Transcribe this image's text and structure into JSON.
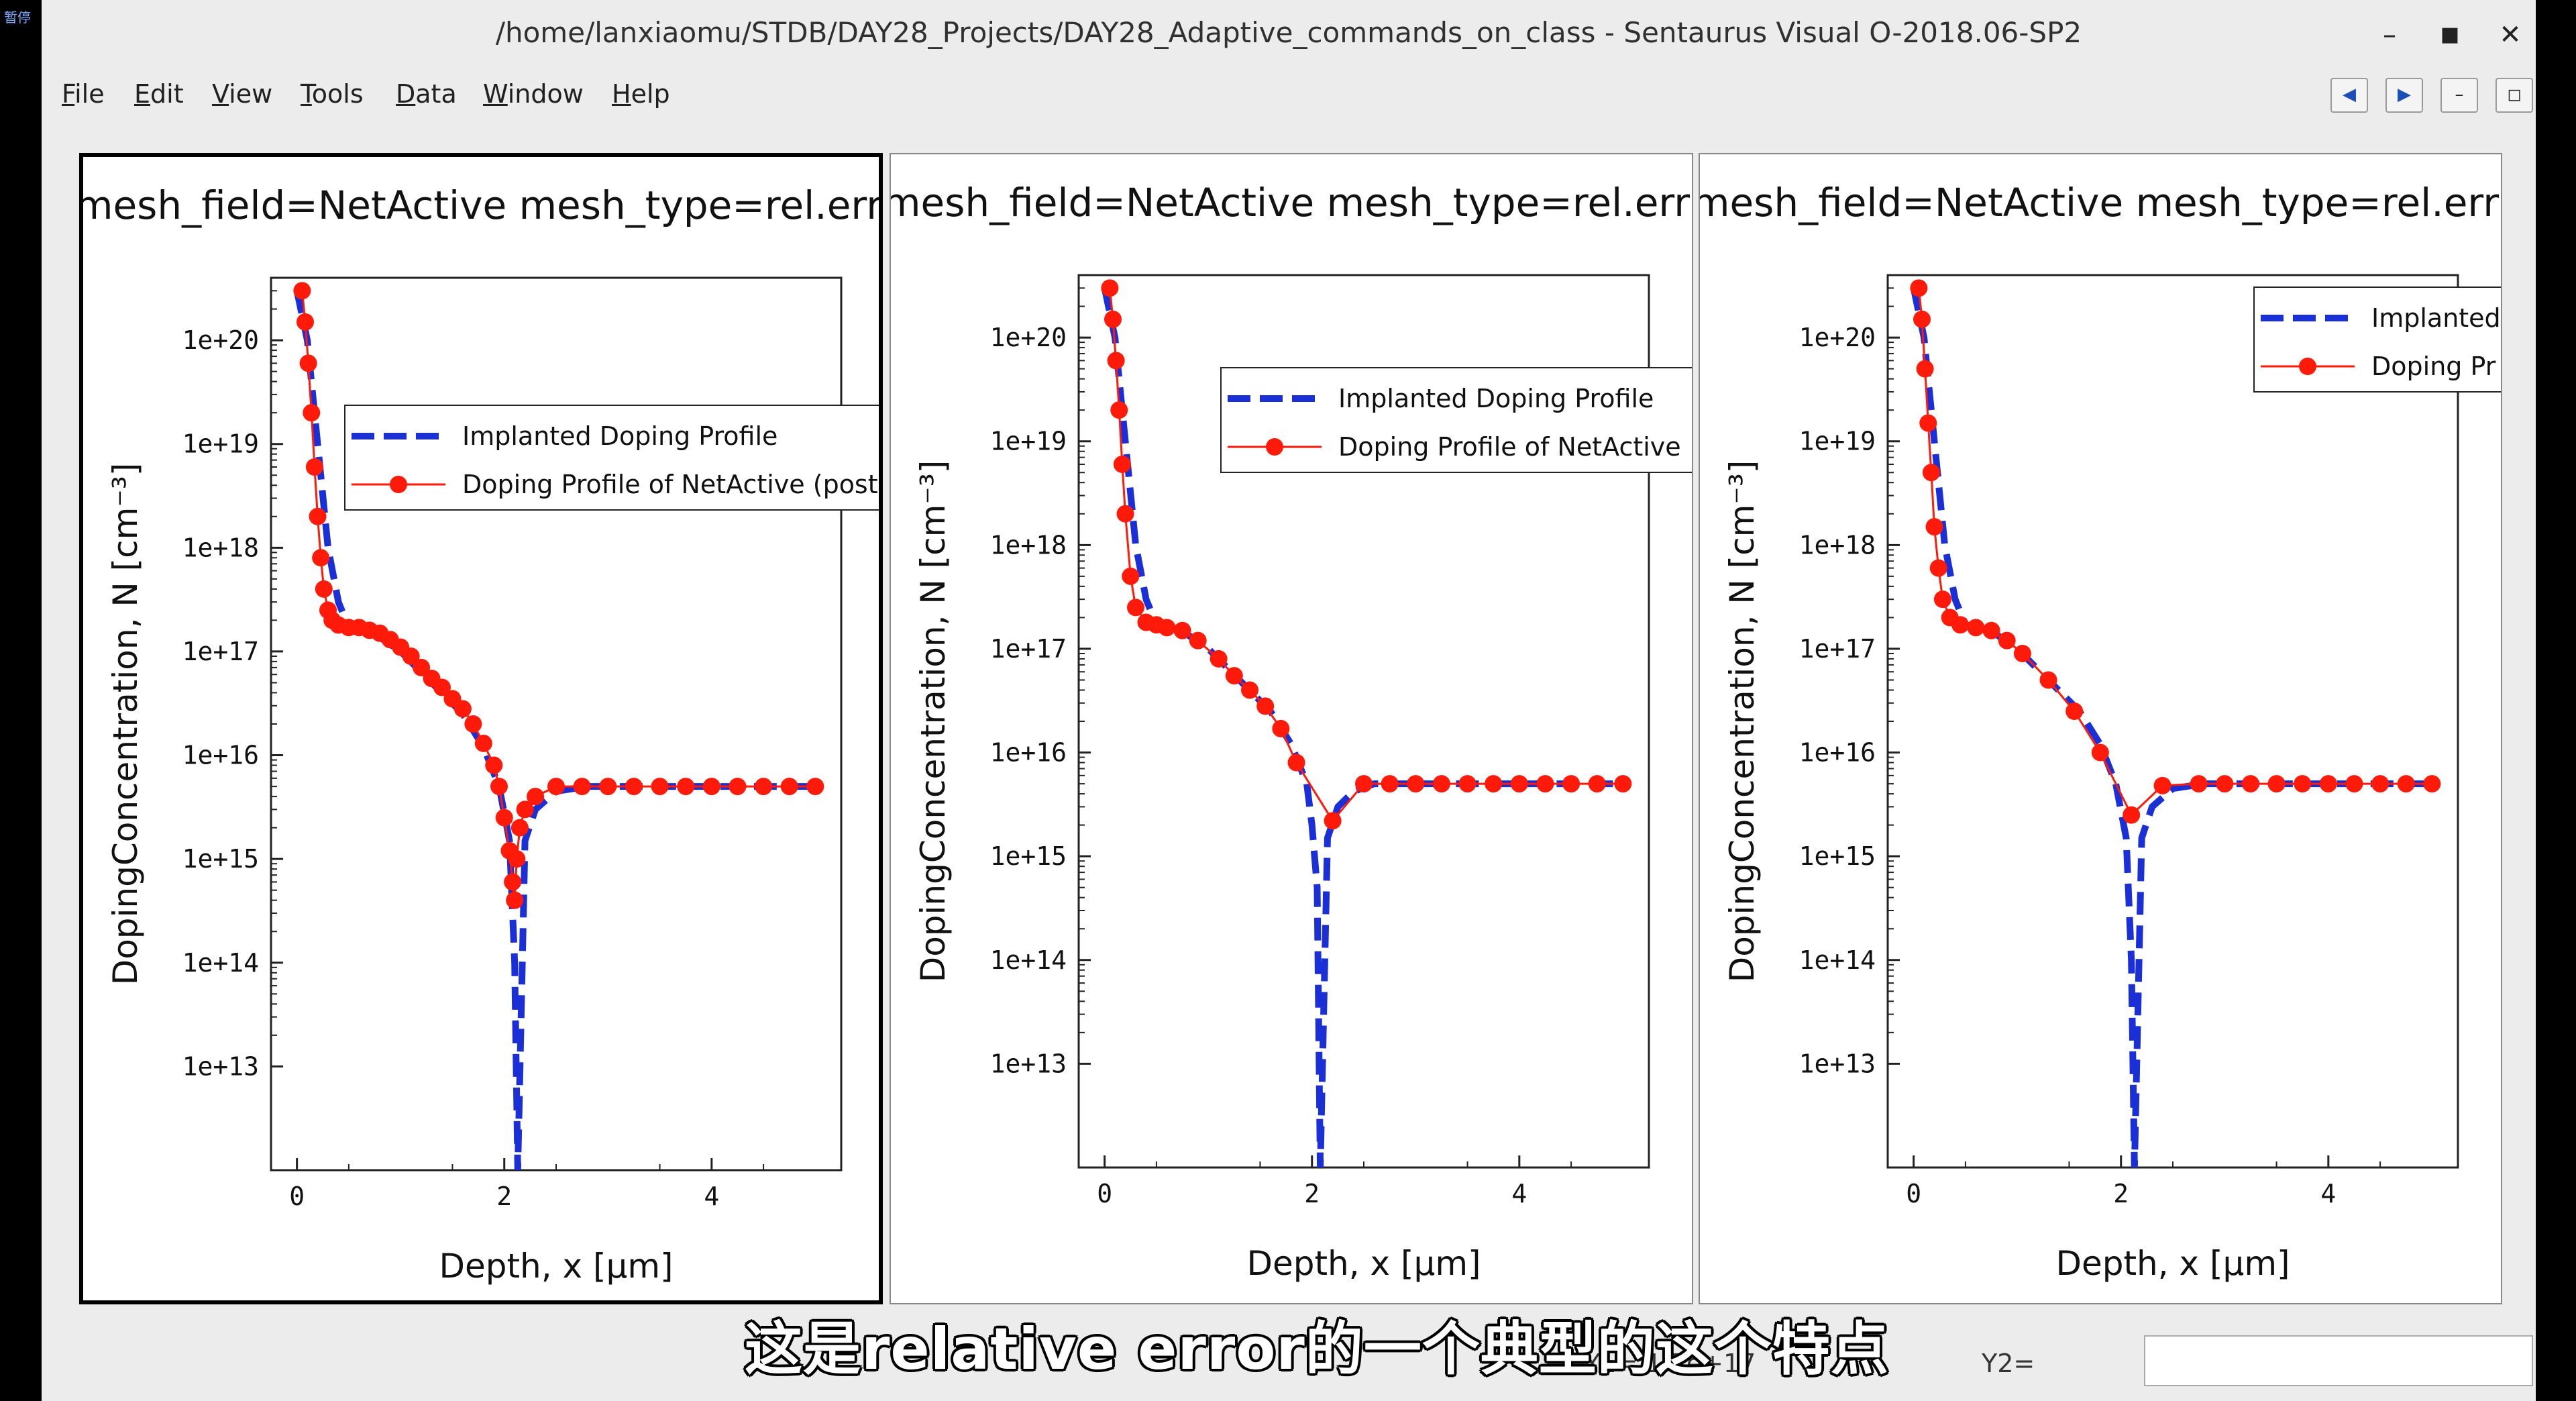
{
  "window": {
    "title": "/home/lanxiaomu/STDB/DAY28_Projects/DAY28_Adaptive_commands_on_class - Sentaurus Visual O-2018.06-SP2",
    "controls": [
      "–",
      "■",
      "✕"
    ],
    "corner_badge": "暂停"
  },
  "menubar": {
    "items": [
      {
        "key": "F",
        "rest": "ile"
      },
      {
        "key": "E",
        "rest": "dit"
      },
      {
        "key": "V",
        "rest": "iew"
      },
      {
        "key": "T",
        "rest": "ools"
      },
      {
        "key": "D",
        "rest": "ata"
      },
      {
        "key": "W",
        "rest": "indow"
      },
      {
        "key": "H",
        "rest": "elp"
      }
    ],
    "right_buttons": [
      "◀",
      "▶",
      "–",
      "◻"
    ]
  },
  "panels": [
    {
      "title": "mesh_field=NetActive mesh_type=rel.err",
      "legend": [
        "Implanted Doping Profile",
        "Doping Profile of NetActive (post"
      ],
      "active": true
    },
    {
      "title": "mesh_field=NetActive mesh_type=rel.err",
      "legend": [
        "Implanted Doping Profile",
        "Doping Profile of NetActive"
      ],
      "active": false
    },
    {
      "title": "mesh_field=NetActive mesh_type=rel.err",
      "legend": [
        "Implanted",
        "Doping Pr"
      ],
      "active": false
    }
  ],
  "chart_data": [
    {
      "type": "line",
      "xlabel": "Depth, x [µm]",
      "ylabel": "DopingConcentration, N [cm⁻³]",
      "xlim": [
        -0.25,
        5.25
      ],
      "ylim": [
        1000000000000.0,
        4e+20
      ],
      "yscale": "log",
      "xticks": [
        0,
        2,
        4
      ],
      "yticks": [
        "1e+13",
        "1e+14",
        "1e+15",
        "1e+16",
        "1e+17",
        "1e+18",
        "1e+19",
        "1e+20"
      ],
      "series": [
        {
          "name": "Implanted Doping Profile",
          "color": "#1a2fd6",
          "style": "dashed",
          "x": [
            0,
            0.1,
            0.2,
            0.3,
            0.4,
            0.5,
            0.7,
            1.0,
            1.3,
            1.6,
            1.8,
            1.95,
            2.05,
            2.1,
            2.13,
            2.2,
            2.3,
            2.5,
            2.8,
            3.5,
            5.0
          ],
          "y": [
            3e+20,
            1e+20,
            1e+19,
            1e+18,
            3e+17,
            1.7e+17,
            1.6e+17,
            1e+17,
            5e+16,
            2.5e+16,
            1.2e+16,
            5000000000000000.0,
            1500000000000000.0,
            100000000000000.0,
            1000000000000.0,
            1500000000000000.0,
            3000000000000000.0,
            4500000000000000.0,
            5000000000000000.0,
            5000000000000000.0,
            5000000000000000.0
          ]
        },
        {
          "name": "Doping Profile of NetActive (post",
          "color": "#ff1a0a",
          "style": "line+marker",
          "x": [
            0.05,
            0.08,
            0.11,
            0.14,
            0.17,
            0.2,
            0.23,
            0.26,
            0.3,
            0.34,
            0.4,
            0.5,
            0.6,
            0.7,
            0.8,
            0.9,
            1.0,
            1.1,
            1.2,
            1.3,
            1.4,
            1.5,
            1.6,
            1.7,
            1.8,
            1.9,
            1.95,
            2.0,
            2.05,
            2.08,
            2.1,
            2.12,
            2.15,
            2.2,
            2.3,
            2.5,
            2.75,
            3.0,
            3.25,
            3.5,
            3.75,
            4.0,
            4.25,
            4.5,
            4.75,
            5.0
          ],
          "y": [
            3e+20,
            1.5e+20,
            6e+19,
            2e+19,
            6e+18,
            2e+18,
            8e+17,
            4e+17,
            2.5e+17,
            2e+17,
            1.8e+17,
            1.7e+17,
            1.7e+17,
            1.6e+17,
            1.5e+17,
            1.3e+17,
            1.1e+17,
            9e+16,
            7e+16,
            5.5e+16,
            4.5e+16,
            3.5e+16,
            2.8e+16,
            2e+16,
            1.3e+16,
            8000000000000000.0,
            5000000000000000.0,
            2500000000000000.0,
            1200000000000000.0,
            600000000000000.0,
            400000000000000.0,
            1000000000000000.0,
            2000000000000000.0,
            3000000000000000.0,
            4000000000000000.0,
            5000000000000000.0,
            5000000000000000.0,
            5000000000000000.0,
            5000000000000000.0,
            5000000000000000.0,
            5000000000000000.0,
            5000000000000000.0,
            5000000000000000.0,
            5000000000000000.0,
            5000000000000000.0,
            5000000000000000.0
          ]
        }
      ]
    },
    {
      "type": "line",
      "xlabel": "Depth, x [µm]",
      "ylabel": "DopingConcentration, N [cm⁻³]",
      "xlim": [
        -0.25,
        5.25
      ],
      "ylim": [
        1000000000000.0,
        4e+20
      ],
      "yscale": "log",
      "xticks": [
        0,
        2,
        4
      ],
      "yticks": [
        "1e+13",
        "1e+14",
        "1e+15",
        "1e+16",
        "1e+17",
        "1e+18",
        "1e+19",
        "1e+20"
      ],
      "series": [
        {
          "name": "Implanted Doping Profile",
          "color": "#1a2fd6",
          "style": "dashed",
          "x": [
            0,
            0.1,
            0.2,
            0.3,
            0.4,
            0.5,
            0.7,
            1.0,
            1.3,
            1.6,
            1.8,
            1.95,
            2.0,
            2.05,
            2.08,
            2.15,
            2.25,
            2.4,
            2.6,
            3.0,
            5.0
          ],
          "y": [
            3e+20,
            1e+20,
            1e+19,
            1e+18,
            3e+17,
            1.7e+17,
            1.6e+17,
            1e+17,
            5e+16,
            2.5e+16,
            1.2e+16,
            5000000000000000.0,
            2000000000000000.0,
            500000000000000.0,
            1000000000000.0,
            1500000000000000.0,
            3000000000000000.0,
            4200000000000000.0,
            5000000000000000.0,
            5000000000000000.0,
            5000000000000000.0
          ]
        },
        {
          "name": "Doping Profile of NetActive",
          "color": "#ff1a0a",
          "style": "line+marker",
          "x": [
            0.05,
            0.08,
            0.11,
            0.14,
            0.17,
            0.2,
            0.25,
            0.3,
            0.4,
            0.5,
            0.6,
            0.75,
            0.9,
            1.1,
            1.25,
            1.4,
            1.55,
            1.7,
            1.85,
            2.2,
            2.5,
            2.75,
            3.0,
            3.25,
            3.5,
            3.75,
            4.0,
            4.25,
            4.5,
            4.75,
            5.0
          ],
          "y": [
            3e+20,
            1.5e+20,
            6e+19,
            2e+19,
            6e+18,
            2e+18,
            5e+17,
            2.5e+17,
            1.8e+17,
            1.7e+17,
            1.6e+17,
            1.5e+17,
            1.2e+17,
            8e+16,
            5.5e+16,
            4e+16,
            2.8e+16,
            1.7e+16,
            8000000000000000.0,
            2200000000000000.0,
            5000000000000000.0,
            5000000000000000.0,
            5000000000000000.0,
            5000000000000000.0,
            5000000000000000.0,
            5000000000000000.0,
            5000000000000000.0,
            5000000000000000.0,
            5000000000000000.0,
            5000000000000000.0,
            5000000000000000.0
          ]
        }
      ]
    },
    {
      "type": "line",
      "xlabel": "Depth, x [µm]",
      "ylabel": "DopingConcentration, N [cm⁻³]",
      "xlim": [
        -0.25,
        5.25
      ],
      "ylim": [
        1000000000000.0,
        4e+20
      ],
      "yscale": "log",
      "xticks": [
        0,
        2,
        4
      ],
      "yticks": [
        "1e+13",
        "1e+14",
        "1e+15",
        "1e+16",
        "1e+17",
        "1e+18",
        "1e+19",
        "1e+20"
      ],
      "series": [
        {
          "name": "Implanted Doping Profile",
          "color": "#1a2fd6",
          "style": "dashed",
          "x": [
            0,
            0.1,
            0.2,
            0.3,
            0.4,
            0.5,
            0.7,
            1.0,
            1.3,
            1.6,
            1.8,
            1.95,
            2.05,
            2.1,
            2.13,
            2.2,
            2.3,
            2.5,
            2.8,
            3.5,
            5.0
          ],
          "y": [
            3e+20,
            1e+20,
            1e+19,
            1e+18,
            3e+17,
            1.7e+17,
            1.6e+17,
            1e+17,
            5e+16,
            2.5e+16,
            1.2e+16,
            5000000000000000.0,
            1500000000000000.0,
            100000000000000.0,
            1000000000000.0,
            1500000000000000.0,
            3000000000000000.0,
            4500000000000000.0,
            5000000000000000.0,
            5000000000000000.0,
            5000000000000000.0
          ]
        },
        {
          "name": "Doping Profile of NetActive",
          "color": "#ff1a0a",
          "style": "line+marker",
          "x": [
            0.05,
            0.08,
            0.11,
            0.14,
            0.17,
            0.2,
            0.24,
            0.28,
            0.35,
            0.45,
            0.6,
            0.75,
            0.9,
            1.05,
            1.3,
            1.55,
            1.8,
            2.1,
            2.4,
            2.75,
            3.0,
            3.25,
            3.5,
            3.75,
            4.0,
            4.25,
            4.5,
            4.75,
            5.0
          ],
          "y": [
            3e+20,
            1.5e+20,
            5e+19,
            1.5e+19,
            5e+18,
            1.5e+18,
            6e+17,
            3e+17,
            2e+17,
            1.7e+17,
            1.6e+17,
            1.5e+17,
            1.2e+17,
            9e+16,
            5e+16,
            2.5e+16,
            1e+16,
            2500000000000000.0,
            4800000000000000.0,
            5000000000000000.0,
            5000000000000000.0,
            5000000000000000.0,
            5000000000000000.0,
            5000000000000000.0,
            5000000000000000.0,
            5000000000000000.0,
            5000000000000000.0,
            5000000000000000.0,
            5000000000000000.0
          ]
        }
      ]
    }
  ],
  "statusbar": {
    "y2_label": "Y2=",
    "fragment": "Y1= 1.7e+17"
  },
  "subtitle": "这是relative error的一个典型的这个特点"
}
